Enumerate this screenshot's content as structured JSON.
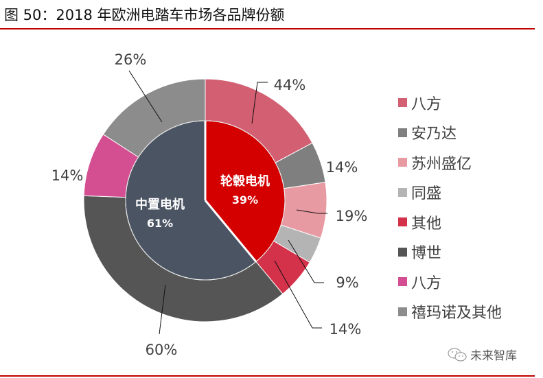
{
  "title": "图 50：2018 年欧洲电踏车市场各品牌份额",
  "watermark": {
    "icon": "wechat-icon",
    "text": "未来智库"
  },
  "colors": {
    "rule": "#c00000"
  },
  "chart_data": {
    "type": "pie",
    "variant": "nested-donut",
    "inner": {
      "categories": [
        "轮毂电机",
        "中置电机"
      ],
      "values": [
        39,
        61
      ],
      "labels": [
        "39%",
        "61%"
      ],
      "colors": [
        "#d40000",
        "#4a5462"
      ]
    },
    "outer": {
      "categories": [
        "八方",
        "安乃达",
        "苏州盛亿",
        "同盛",
        "其他",
        "博世",
        "八方",
        "禧玛诺及其他"
      ],
      "values": [
        44,
        14,
        19,
        9,
        14,
        60,
        14,
        26
      ],
      "parent": [
        "轮毂电机",
        "轮毂电机",
        "轮毂电机",
        "轮毂电机",
        "轮毂电机",
        "中置电机",
        "中置电机",
        "中置电机"
      ],
      "labels": [
        "44%",
        "14%",
        "19%",
        "9%",
        "14%",
        "60%",
        "14%",
        "26%"
      ],
      "colors": [
        "#d25f72",
        "#7f7f7f",
        "#e89aa3",
        "#b4b4b4",
        "#d4324a",
        "#555555",
        "#d44e92",
        "#8c8c8c"
      ]
    },
    "legend": {
      "position": "right",
      "entries": [
        "八方",
        "安乃达",
        "苏州盛亿",
        "同盛",
        "其他",
        "博世",
        "八方",
        "禧玛诺及其他"
      ]
    }
  }
}
